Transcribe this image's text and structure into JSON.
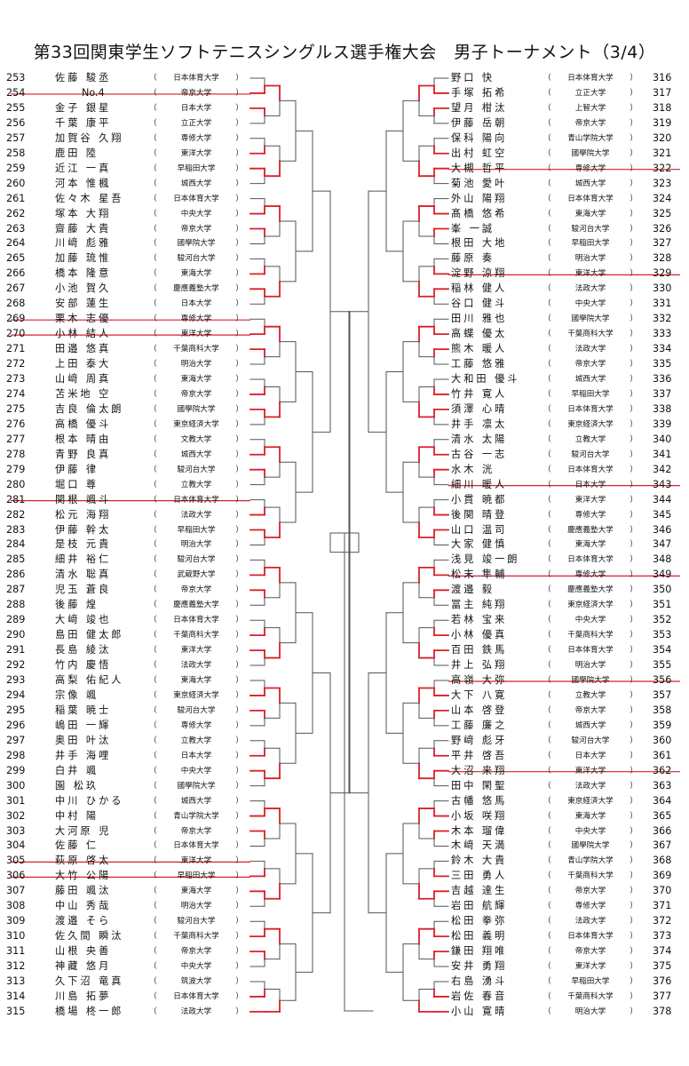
{
  "title": "第33回関東学生ソフトテニスシングルス選手権大会　男子トーナメント（3/4）",
  "colors": {
    "win": "#d9202a",
    "line": "#555555",
    "text": "#111111"
  },
  "left_players": [
    {
      "num": "253",
      "name": "佐藤 駿丞",
      "uni": "日本体育大学",
      "withdrawn": false
    },
    {
      "num": "254",
      "name": "No.4",
      "uni": "帝京大学",
      "withdrawn": true
    },
    {
      "num": "255",
      "name": "金子 銀星",
      "uni": "日本大学",
      "withdrawn": false
    },
    {
      "num": "256",
      "name": "千葉 康平",
      "uni": "立正大学",
      "withdrawn": false
    },
    {
      "num": "257",
      "name": "加賀谷 久翔",
      "uni": "専修大学",
      "withdrawn": false
    },
    {
      "num": "258",
      "name": "鹿田 陸",
      "uni": "東洋大学",
      "withdrawn": false
    },
    {
      "num": "259",
      "name": "近江 一真",
      "uni": "早稲田大学",
      "withdrawn": false
    },
    {
      "num": "260",
      "name": "河本 惟楓",
      "uni": "城西大学",
      "withdrawn": false
    },
    {
      "num": "261",
      "name": "佐々木 星吾",
      "uni": "日本体育大学",
      "withdrawn": false
    },
    {
      "num": "262",
      "name": "塚本 大翔",
      "uni": "中央大学",
      "withdrawn": false
    },
    {
      "num": "263",
      "name": "齋藤 大貴",
      "uni": "帝京大学",
      "withdrawn": false
    },
    {
      "num": "264",
      "name": "川﨑 彪雅",
      "uni": "國學院大学",
      "withdrawn": false
    },
    {
      "num": "265",
      "name": "加藤 琉惟",
      "uni": "駿河台大学",
      "withdrawn": false
    },
    {
      "num": "266",
      "name": "橋本 隆意",
      "uni": "東海大学",
      "withdrawn": false
    },
    {
      "num": "267",
      "name": "小池 賀久",
      "uni": "慶應義塾大学",
      "withdrawn": false
    },
    {
      "num": "268",
      "name": "安部 蓮生",
      "uni": "日本大学",
      "withdrawn": false
    },
    {
      "num": "269",
      "name": "栗木 志優",
      "uni": "専修大学",
      "withdrawn": true
    },
    {
      "num": "270",
      "name": "小林 結人",
      "uni": "東洋大学",
      "withdrawn": true
    },
    {
      "num": "271",
      "name": "田邉 悠真",
      "uni": "千葉商科大学",
      "withdrawn": false
    },
    {
      "num": "272",
      "name": "上田 泰大",
      "uni": "明治大学",
      "withdrawn": false
    },
    {
      "num": "273",
      "name": "山﨑 周真",
      "uni": "東海大学",
      "withdrawn": false
    },
    {
      "num": "274",
      "name": "苫米地 空",
      "uni": "帝京大学",
      "withdrawn": false
    },
    {
      "num": "275",
      "name": "吉良 倫太朗",
      "uni": "國學院大学",
      "withdrawn": false
    },
    {
      "num": "276",
      "name": "高橋 優斗",
      "uni": "東京経済大学",
      "withdrawn": false
    },
    {
      "num": "277",
      "name": "根本 晴由",
      "uni": "文教大学",
      "withdrawn": false
    },
    {
      "num": "278",
      "name": "青野 良真",
      "uni": "城西大学",
      "withdrawn": false
    },
    {
      "num": "279",
      "name": "伊藤 律",
      "uni": "駿河台大学",
      "withdrawn": false
    },
    {
      "num": "280",
      "name": "堀口 尊",
      "uni": "立教大学",
      "withdrawn": false
    },
    {
      "num": "281",
      "name": "関根 颯斗",
      "uni": "日本体育大学",
      "withdrawn": true
    },
    {
      "num": "282",
      "name": "松元 海翔",
      "uni": "法政大学",
      "withdrawn": false
    },
    {
      "num": "283",
      "name": "伊藤 幹太",
      "uni": "早稲田大学",
      "withdrawn": false
    },
    {
      "num": "284",
      "name": "是枝 元貴",
      "uni": "明治大学",
      "withdrawn": false
    },
    {
      "num": "285",
      "name": "細井 裕仁",
      "uni": "駿河台大学",
      "withdrawn": false
    },
    {
      "num": "286",
      "name": "清水 聡真",
      "uni": "武蔵野大学",
      "withdrawn": false
    },
    {
      "num": "287",
      "name": "児玉 蒼良",
      "uni": "帝京大学",
      "withdrawn": false
    },
    {
      "num": "288",
      "name": "後藤 煌",
      "uni": "慶應義塾大学",
      "withdrawn": false
    },
    {
      "num": "289",
      "name": "大﨑 竣也",
      "uni": "日本体育大学",
      "withdrawn": false
    },
    {
      "num": "290",
      "name": "島田 健太郎",
      "uni": "千葉商科大学",
      "withdrawn": false
    },
    {
      "num": "291",
      "name": "長島 綾汰",
      "uni": "東洋大学",
      "withdrawn": false
    },
    {
      "num": "292",
      "name": "竹内 慶悟",
      "uni": "法政大学",
      "withdrawn": false
    },
    {
      "num": "293",
      "name": "高梨 佑紀人",
      "uni": "東海大学",
      "withdrawn": false
    },
    {
      "num": "294",
      "name": "宗像 颯",
      "uni": "東京経済大学",
      "withdrawn": false
    },
    {
      "num": "295",
      "name": "稲葉 暁士",
      "uni": "駿河台大学",
      "withdrawn": false
    },
    {
      "num": "296",
      "name": "嶋田 一輝",
      "uni": "専修大学",
      "withdrawn": false
    },
    {
      "num": "297",
      "name": "奥田 叶汰",
      "uni": "立教大学",
      "withdrawn": false
    },
    {
      "num": "298",
      "name": "井手 海哩",
      "uni": "日本大学",
      "withdrawn": false
    },
    {
      "num": "299",
      "name": "白井 颯",
      "uni": "中央大学",
      "withdrawn": false
    },
    {
      "num": "300",
      "name": "園 松玖",
      "uni": "國學院大学",
      "withdrawn": false
    },
    {
      "num": "301",
      "name": "中川 ひかる",
      "uni": "城西大学",
      "withdrawn": false
    },
    {
      "num": "302",
      "name": "中村 陽",
      "uni": "青山学院大学",
      "withdrawn": false
    },
    {
      "num": "303",
      "name": "大河原 児",
      "uni": "帝京大学",
      "withdrawn": false
    },
    {
      "num": "304",
      "name": "佐藤 仁",
      "uni": "日本体育大学",
      "withdrawn": false
    },
    {
      "num": "305",
      "name": "萩原 啓太",
      "uni": "東洋大学",
      "withdrawn": true
    },
    {
      "num": "306",
      "name": "大竹 公陽",
      "uni": "早稲田大学",
      "withdrawn": true
    },
    {
      "num": "307",
      "name": "藤田 颯汰",
      "uni": "東海大学",
      "withdrawn": false
    },
    {
      "num": "308",
      "name": "中山 秀哉",
      "uni": "明治大学",
      "withdrawn": false
    },
    {
      "num": "309",
      "name": "渡邉 そら",
      "uni": "駿河台大学",
      "withdrawn": false
    },
    {
      "num": "310",
      "name": "佐久間 瞬汰",
      "uni": "千葉商科大学",
      "withdrawn": false
    },
    {
      "num": "311",
      "name": "山根 央善",
      "uni": "帝京大学",
      "withdrawn": false
    },
    {
      "num": "312",
      "name": "神藏 悠月",
      "uni": "中央大学",
      "withdrawn": false
    },
    {
      "num": "313",
      "name": "久下沼 竜真",
      "uni": "筑波大学",
      "withdrawn": false
    },
    {
      "num": "314",
      "name": "川島 拓夢",
      "uni": "日本体育大学",
      "withdrawn": false
    },
    {
      "num": "315",
      "name": "橋場 柊一郎",
      "uni": "法政大学",
      "withdrawn": false
    }
  ],
  "right_players": [
    {
      "num": "316",
      "name": "野口 快",
      "uni": "日本体育大学",
      "withdrawn": false
    },
    {
      "num": "317",
      "name": "手塚 拓希",
      "uni": "立正大学",
      "withdrawn": false
    },
    {
      "num": "318",
      "name": "望月 柑汰",
      "uni": "上智大学",
      "withdrawn": false
    },
    {
      "num": "319",
      "name": "伊藤 岳朝",
      "uni": "帝京大学",
      "withdrawn": false
    },
    {
      "num": "320",
      "name": "保科 陽向",
      "uni": "青山学院大学",
      "withdrawn": false
    },
    {
      "num": "321",
      "name": "出村 虹空",
      "uni": "國學院大学",
      "withdrawn": false
    },
    {
      "num": "322",
      "name": "大槻 哲平",
      "uni": "専修大学",
      "withdrawn": true
    },
    {
      "num": "323",
      "name": "菊池 愛叶",
      "uni": "城西大学",
      "withdrawn": false
    },
    {
      "num": "324",
      "name": "外山 陽翔",
      "uni": "日本体育大学",
      "withdrawn": false
    },
    {
      "num": "325",
      "name": "髙橋 悠希",
      "uni": "東海大学",
      "withdrawn": false
    },
    {
      "num": "326",
      "name": "峯 一誠",
      "uni": "駿河台大学",
      "withdrawn": false
    },
    {
      "num": "327",
      "name": "根田 大地",
      "uni": "早稲田大学",
      "withdrawn": false
    },
    {
      "num": "328",
      "name": "藤原 奏",
      "uni": "明治大学",
      "withdrawn": false
    },
    {
      "num": "329",
      "name": "淀野 涼翔",
      "uni": "東洋大学",
      "withdrawn": true
    },
    {
      "num": "330",
      "name": "稲林 健人",
      "uni": "法政大学",
      "withdrawn": false
    },
    {
      "num": "331",
      "name": "谷口 健斗",
      "uni": "中央大学",
      "withdrawn": false
    },
    {
      "num": "332",
      "name": "田川 雅也",
      "uni": "國學院大学",
      "withdrawn": false
    },
    {
      "num": "333",
      "name": "高蝶 優太",
      "uni": "千葉商科大学",
      "withdrawn": false
    },
    {
      "num": "334",
      "name": "熊木 暖人",
      "uni": "法政大学",
      "withdrawn": false
    },
    {
      "num": "335",
      "name": "工藤 悠雅",
      "uni": "帝京大学",
      "withdrawn": false
    },
    {
      "num": "336",
      "name": "大和田 優斗",
      "uni": "城西大学",
      "withdrawn": false
    },
    {
      "num": "337",
      "name": "竹井 寛人",
      "uni": "早稲田大学",
      "withdrawn": false
    },
    {
      "num": "338",
      "name": "須澤 心晴",
      "uni": "日本体育大学",
      "withdrawn": false
    },
    {
      "num": "339",
      "name": "井手 凛太",
      "uni": "東京経済大学",
      "withdrawn": false
    },
    {
      "num": "340",
      "name": "清水 太陽",
      "uni": "立教大学",
      "withdrawn": false
    },
    {
      "num": "341",
      "name": "古谷 一志",
      "uni": "駿河台大学",
      "withdrawn": false
    },
    {
      "num": "342",
      "name": "水木 洸",
      "uni": "日本体育大学",
      "withdrawn": false
    },
    {
      "num": "343",
      "name": "細川 暖人",
      "uni": "日本大学",
      "withdrawn": true
    },
    {
      "num": "344",
      "name": "小貫 暁都",
      "uni": "東洋大学",
      "withdrawn": false
    },
    {
      "num": "345",
      "name": "後関 晴登",
      "uni": "専修大学",
      "withdrawn": false
    },
    {
      "num": "346",
      "name": "山口 温司",
      "uni": "慶應義塾大学",
      "withdrawn": false
    },
    {
      "num": "347",
      "name": "大家 健慎",
      "uni": "東海大学",
      "withdrawn": false
    },
    {
      "num": "348",
      "name": "浅見 竣一朗",
      "uni": "日本体育大学",
      "withdrawn": false
    },
    {
      "num": "349",
      "name": "松末 隼輔",
      "uni": "専修大学",
      "withdrawn": true
    },
    {
      "num": "350",
      "name": "渡邉 毅",
      "uni": "慶應義塾大学",
      "withdrawn": false
    },
    {
      "num": "351",
      "name": "冨主 純翔",
      "uni": "東京経済大学",
      "withdrawn": false
    },
    {
      "num": "352",
      "name": "若林 宝来",
      "uni": "中央大学",
      "withdrawn": false
    },
    {
      "num": "353",
      "name": "小林 優真",
      "uni": "千葉商科大学",
      "withdrawn": false
    },
    {
      "num": "354",
      "name": "百田 鉄馬",
      "uni": "日本体育大学",
      "withdrawn": false
    },
    {
      "num": "355",
      "name": "井上 弘翔",
      "uni": "明治大学",
      "withdrawn": false
    },
    {
      "num": "356",
      "name": "高嶺 大弥",
      "uni": "國學院大学",
      "withdrawn": true
    },
    {
      "num": "357",
      "name": "大下 八寛",
      "uni": "立教大学",
      "withdrawn": false
    },
    {
      "num": "358",
      "name": "山本 啓登",
      "uni": "帝京大学",
      "withdrawn": false
    },
    {
      "num": "359",
      "name": "工藤 廉之",
      "uni": "城西大学",
      "withdrawn": false
    },
    {
      "num": "360",
      "name": "野﨑 彪牙",
      "uni": "駿河台大学",
      "withdrawn": false
    },
    {
      "num": "361",
      "name": "平井 啓吾",
      "uni": "日本大学",
      "withdrawn": false
    },
    {
      "num": "362",
      "name": "大沼 来翔",
      "uni": "東洋大学",
      "withdrawn": true
    },
    {
      "num": "363",
      "name": "田中 閑聖",
      "uni": "法政大学",
      "withdrawn": false
    },
    {
      "num": "364",
      "name": "古幡 悠馬",
      "uni": "東京経済大学",
      "withdrawn": false
    },
    {
      "num": "365",
      "name": "小坂 咲翔",
      "uni": "東海大学",
      "withdrawn": false
    },
    {
      "num": "366",
      "name": "木本 瑠偉",
      "uni": "中央大学",
      "withdrawn": false
    },
    {
      "num": "367",
      "name": "木﨑 天満",
      "uni": "國學院大学",
      "withdrawn": false
    },
    {
      "num": "368",
      "name": "鈴木 大貴",
      "uni": "青山学院大学",
      "withdrawn": false
    },
    {
      "num": "369",
      "name": "三田 勇人",
      "uni": "千葉商科大学",
      "withdrawn": false
    },
    {
      "num": "370",
      "name": "吉越 達生",
      "uni": "帝京大学",
      "withdrawn": false
    },
    {
      "num": "371",
      "name": "岩田 航輝",
      "uni": "専修大学",
      "withdrawn": false
    },
    {
      "num": "372",
      "name": "松田 拳弥",
      "uni": "法政大学",
      "withdrawn": false
    },
    {
      "num": "373",
      "name": "松田 義明",
      "uni": "日本体育大学",
      "withdrawn": false
    },
    {
      "num": "374",
      "name": "鎌田 翔唯",
      "uni": "帝京大学",
      "withdrawn": false
    },
    {
      "num": "375",
      "name": "安井 勇翔",
      "uni": "東洋大学",
      "withdrawn": false
    },
    {
      "num": "376",
      "name": "右島 湧斗",
      "uni": "早稲田大学",
      "withdrawn": false
    },
    {
      "num": "377",
      "name": "岩佐 春音",
      "uni": "千葉商科大学",
      "withdrawn": false
    },
    {
      "num": "378",
      "name": "小山 寛晴",
      "uni": "明治大学",
      "withdrawn": false
    }
  ]
}
